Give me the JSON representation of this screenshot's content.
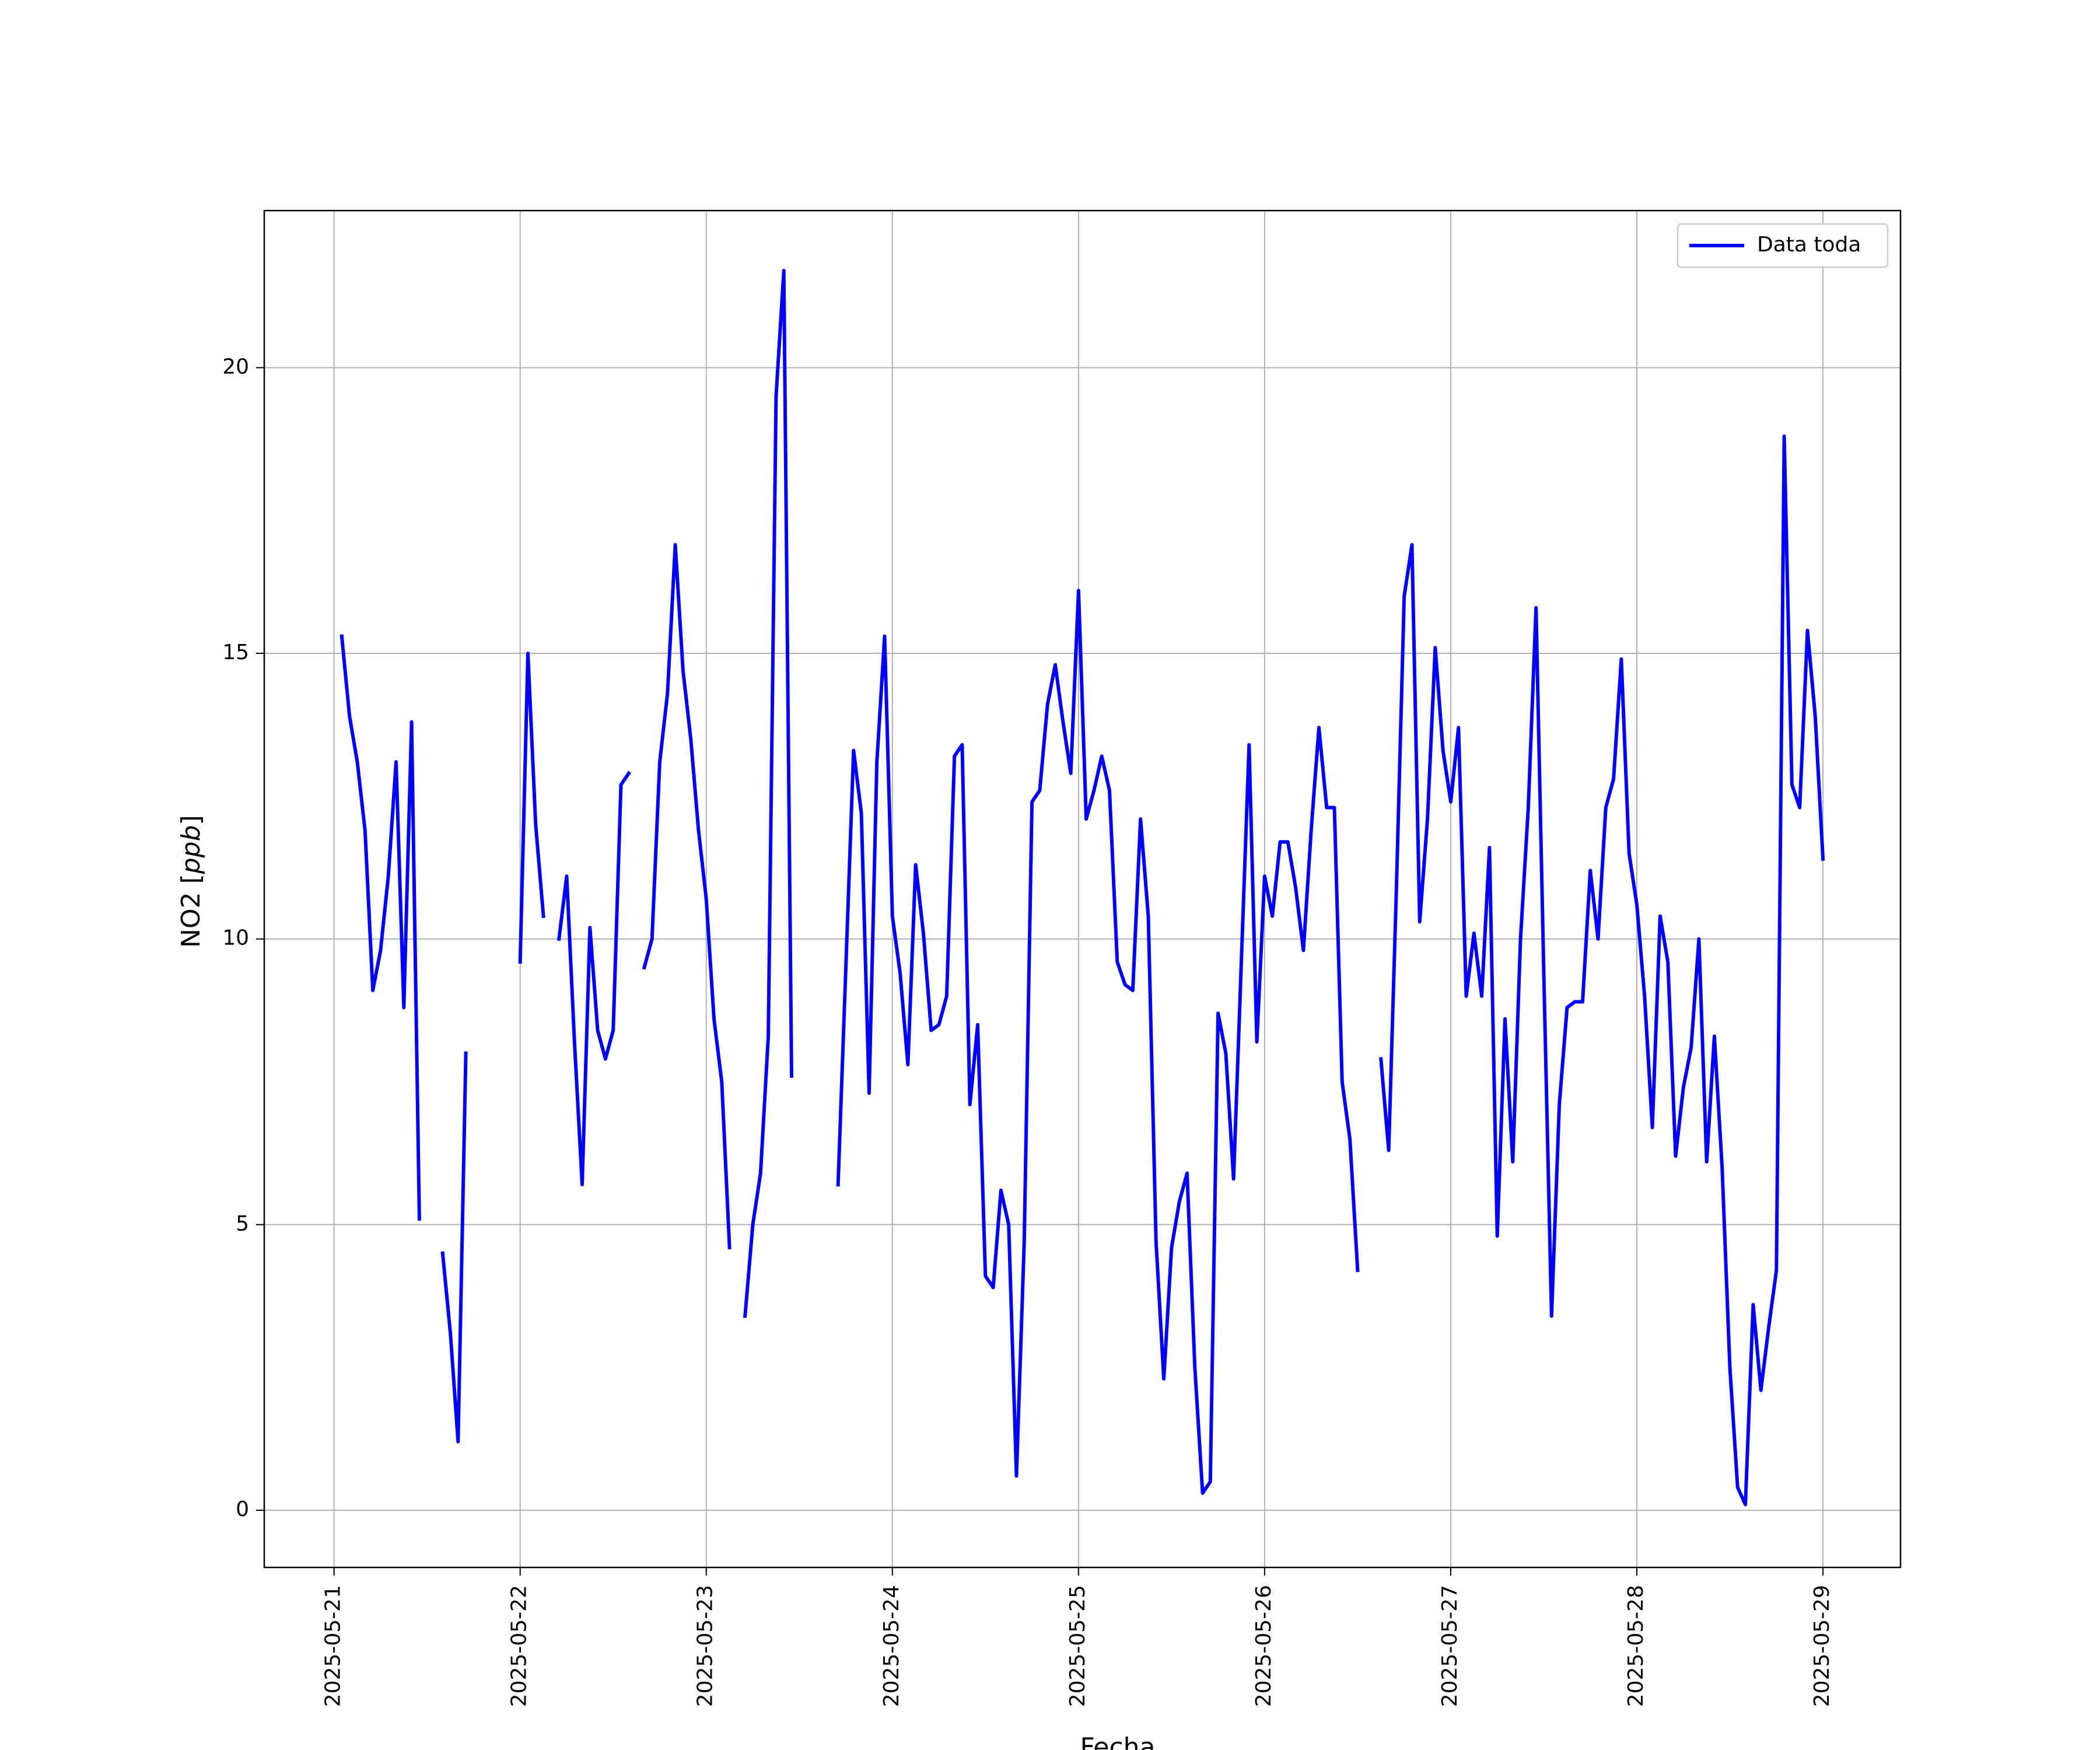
{
  "chart_data": {
    "type": "line",
    "xlabel": "Fecha",
    "ylabel_main": "NO2 [",
    "ylabel_unit": "ppb",
    "ylabel_close": "]",
    "xlim": [
      "2025-05-20 15:00",
      "2025-05-29 10:00"
    ],
    "ylim": [
      -1,
      22.75
    ],
    "grid": true,
    "legend_position": "top-right",
    "x_ticks": [
      "2025-05-21",
      "2025-05-22",
      "2025-05-23",
      "2025-05-24",
      "2025-05-25",
      "2025-05-26",
      "2025-05-27",
      "2025-05-28",
      "2025-05-29"
    ],
    "y_ticks": [
      0,
      5,
      10,
      15,
      20
    ],
    "y_tick_labels": [
      "0",
      "5",
      "10",
      "15",
      "20"
    ],
    "series": [
      {
        "name": "Data toda",
        "color": "#0000ff",
        "segments": [
          [
            [
              "2025-05-21 01:00",
              15.3
            ],
            [
              "2025-05-21 02:00",
              13.9
            ],
            [
              "2025-05-21 03:00",
              13.1
            ],
            [
              "2025-05-21 04:00",
              11.9
            ],
            [
              "2025-05-21 05:00",
              9.1
            ],
            [
              "2025-05-21 06:00",
              9.8
            ],
            [
              "2025-05-21 07:00",
              11.1
            ],
            [
              "2025-05-21 08:00",
              13.1
            ],
            [
              "2025-05-21 09:00",
              8.8
            ],
            [
              "2025-05-21 10:00",
              13.8
            ],
            [
              "2025-05-21 11:00",
              5.1
            ]
          ],
          [
            [
              "2025-05-21 14:00",
              4.5
            ],
            [
              "2025-05-21 15:00",
              3.1
            ],
            [
              "2025-05-21 16:00",
              1.2
            ],
            [
              "2025-05-21 17:00",
              8.0
            ]
          ],
          [
            [
              "2025-05-22 00:00",
              9.6
            ],
            [
              "2025-05-22 01:00",
              15.0
            ],
            [
              "2025-05-22 02:00",
              12.0
            ],
            [
              "2025-05-22 03:00",
              10.4
            ]
          ],
          [
            [
              "2025-05-22 05:00",
              10.0
            ],
            [
              "2025-05-22 06:00",
              11.1
            ],
            [
              "2025-05-22 07:00",
              8.2
            ],
            [
              "2025-05-22 08:00",
              5.7
            ],
            [
              "2025-05-22 09:00",
              10.2
            ],
            [
              "2025-05-22 10:00",
              8.4
            ],
            [
              "2025-05-22 11:00",
              7.9
            ],
            [
              "2025-05-22 12:00",
              8.4
            ],
            [
              "2025-05-22 13:00",
              12.7
            ],
            [
              "2025-05-22 14:00",
              12.9
            ]
          ],
          [
            [
              "2025-05-22 16:00",
              9.5
            ],
            [
              "2025-05-22 17:00",
              10.0
            ],
            [
              "2025-05-22 18:00",
              13.1
            ],
            [
              "2025-05-22 19:00",
              14.3
            ],
            [
              "2025-05-22 20:00",
              16.9
            ],
            [
              "2025-05-22 21:00",
              14.7
            ],
            [
              "2025-05-22 22:00",
              13.5
            ],
            [
              "2025-05-22 23:00",
              11.9
            ],
            [
              "2025-05-23 00:00",
              10.7
            ],
            [
              "2025-05-23 01:00",
              8.6
            ],
            [
              "2025-05-23 02:00",
              7.5
            ],
            [
              "2025-05-23 03:00",
              4.6
            ]
          ],
          [
            [
              "2025-05-23 05:00",
              3.4
            ],
            [
              "2025-05-23 06:00",
              5.0
            ],
            [
              "2025-05-23 07:00",
              5.9
            ],
            [
              "2025-05-23 08:00",
              8.3
            ],
            [
              "2025-05-23 09:00",
              19.5
            ],
            [
              "2025-05-23 10:00",
              21.7
            ],
            [
              "2025-05-23 11:00",
              7.6
            ]
          ],
          [
            [
              "2025-05-23 17:00",
              5.7
            ],
            [
              "2025-05-23 18:00",
              9.5
            ],
            [
              "2025-05-23 19:00",
              13.3
            ],
            [
              "2025-05-23 20:00",
              12.2
            ],
            [
              "2025-05-23 21:00",
              7.3
            ],
            [
              "2025-05-23 22:00",
              13.1
            ],
            [
              "2025-05-23 23:00",
              15.3
            ],
            [
              "2025-05-24 00:00",
              10.4
            ],
            [
              "2025-05-24 01:00",
              9.4
            ],
            [
              "2025-05-24 02:00",
              7.8
            ],
            [
              "2025-05-24 03:00",
              11.3
            ],
            [
              "2025-05-24 04:00",
              10.1
            ],
            [
              "2025-05-24 05:00",
              8.4
            ],
            [
              "2025-05-24 06:00",
              8.5
            ],
            [
              "2025-05-24 07:00",
              9.0
            ],
            [
              "2025-05-24 08:00",
              13.2
            ],
            [
              "2025-05-24 09:00",
              13.4
            ],
            [
              "2025-05-24 10:00",
              7.1
            ],
            [
              "2025-05-24 11:00",
              8.5
            ],
            [
              "2025-05-24 12:00",
              4.1
            ],
            [
              "2025-05-24 13:00",
              3.9
            ],
            [
              "2025-05-24 14:00",
              5.6
            ],
            [
              "2025-05-24 15:00",
              5.0
            ],
            [
              "2025-05-24 16:00",
              0.6
            ],
            [
              "2025-05-24 17:00",
              4.7
            ],
            [
              "2025-05-24 18:00",
              12.4
            ],
            [
              "2025-05-24 19:00",
              12.6
            ],
            [
              "2025-05-24 20:00",
              14.1
            ],
            [
              "2025-05-24 21:00",
              14.8
            ],
            [
              "2025-05-24 22:00",
              13.8
            ],
            [
              "2025-05-24 23:00",
              12.9
            ],
            [
              "2025-05-25 00:00",
              16.1
            ],
            [
              "2025-05-25 01:00",
              12.1
            ],
            [
              "2025-05-25 02:00",
              12.6
            ],
            [
              "2025-05-25 03:00",
              13.2
            ],
            [
              "2025-05-25 04:00",
              12.6
            ],
            [
              "2025-05-25 05:00",
              9.6
            ],
            [
              "2025-05-25 06:00",
              9.2
            ],
            [
              "2025-05-25 07:00",
              9.1
            ],
            [
              "2025-05-25 08:00",
              12.1
            ],
            [
              "2025-05-25 09:00",
              10.4
            ],
            [
              "2025-05-25 10:00",
              4.7
            ],
            [
              "2025-05-25 11:00",
              2.3
            ],
            [
              "2025-05-25 12:00",
              4.6
            ],
            [
              "2025-05-25 13:00",
              5.4
            ],
            [
              "2025-05-25 14:00",
              5.9
            ],
            [
              "2025-05-25 15:00",
              2.5
            ],
            [
              "2025-05-25 16:00",
              0.3
            ],
            [
              "2025-05-25 17:00",
              0.5
            ],
            [
              "2025-05-25 18:00",
              8.7
            ],
            [
              "2025-05-25 19:00",
              8.0
            ],
            [
              "2025-05-25 20:00",
              5.8
            ],
            [
              "2025-05-25 21:00",
              9.6
            ],
            [
              "2025-05-25 22:00",
              13.4
            ],
            [
              "2025-05-25 23:00",
              8.2
            ],
            [
              "2025-05-26 00:00",
              11.1
            ],
            [
              "2025-05-26 01:00",
              10.4
            ],
            [
              "2025-05-26 02:00",
              11.7
            ],
            [
              "2025-05-26 03:00",
              11.7
            ],
            [
              "2025-05-26 04:00",
              10.9
            ],
            [
              "2025-05-26 05:00",
              9.8
            ],
            [
              "2025-05-26 06:00",
              11.9
            ],
            [
              "2025-05-26 07:00",
              13.7
            ],
            [
              "2025-05-26 08:00",
              12.3
            ],
            [
              "2025-05-26 09:00",
              12.3
            ],
            [
              "2025-05-26 10:00",
              7.5
            ],
            [
              "2025-05-26 11:00",
              6.5
            ],
            [
              "2025-05-26 12:00",
              4.2
            ]
          ],
          [
            [
              "2025-05-26 15:00",
              7.9
            ],
            [
              "2025-05-26 16:00",
              6.3
            ],
            [
              "2025-05-26 17:00",
              10.9
            ],
            [
              "2025-05-26 18:00",
              16.0
            ],
            [
              "2025-05-26 19:00",
              16.9
            ],
            [
              "2025-05-26 20:00",
              10.3
            ],
            [
              "2025-05-26 21:00",
              12.1
            ],
            [
              "2025-05-26 22:00",
              15.1
            ],
            [
              "2025-05-26 23:00",
              13.3
            ],
            [
              "2025-05-27 00:00",
              12.4
            ],
            [
              "2025-05-27 01:00",
              13.7
            ],
            [
              "2025-05-27 02:00",
              9.0
            ],
            [
              "2025-05-27 03:00",
              10.1
            ],
            [
              "2025-05-27 04:00",
              9.0
            ],
            [
              "2025-05-27 05:00",
              11.6
            ],
            [
              "2025-05-27 06:00",
              4.8
            ],
            [
              "2025-05-27 07:00",
              8.6
            ],
            [
              "2025-05-27 08:00",
              6.1
            ],
            [
              "2025-05-27 09:00",
              10.0
            ],
            [
              "2025-05-27 10:00",
              12.3
            ],
            [
              "2025-05-27 11:00",
              15.8
            ],
            [
              "2025-05-27 12:00",
              9.4
            ],
            [
              "2025-05-27 13:00",
              3.4
            ],
            [
              "2025-05-27 14:00",
              7.1
            ],
            [
              "2025-05-27 15:00",
              8.8
            ],
            [
              "2025-05-27 16:00",
              8.9
            ],
            [
              "2025-05-27 17:00",
              8.9
            ],
            [
              "2025-05-27 18:00",
              11.2
            ],
            [
              "2025-05-27 19:00",
              10.0
            ],
            [
              "2025-05-27 20:00",
              12.3
            ],
            [
              "2025-05-27 21:00",
              12.8
            ],
            [
              "2025-05-27 22:00",
              14.9
            ],
            [
              "2025-05-27 23:00",
              11.5
            ],
            [
              "2025-05-28 00:00",
              10.6
            ],
            [
              "2025-05-28 01:00",
              9.0
            ],
            [
              "2025-05-28 02:00",
              6.7
            ],
            [
              "2025-05-28 03:00",
              10.4
            ],
            [
              "2025-05-28 04:00",
              9.6
            ],
            [
              "2025-05-28 05:00",
              6.2
            ],
            [
              "2025-05-28 06:00",
              7.4
            ],
            [
              "2025-05-28 07:00",
              8.1
            ],
            [
              "2025-05-28 08:00",
              10.0
            ],
            [
              "2025-05-28 09:00",
              6.1
            ],
            [
              "2025-05-28 10:00",
              8.3
            ],
            [
              "2025-05-28 11:00",
              6.0
            ],
            [
              "2025-05-28 12:00",
              2.5
            ],
            [
              "2025-05-28 13:00",
              0.4
            ],
            [
              "2025-05-28 14:00",
              0.1
            ],
            [
              "2025-05-28 15:00",
              3.6
            ],
            [
              "2025-05-28 16:00",
              2.1
            ],
            [
              "2025-05-28 17:00",
              3.2
            ],
            [
              "2025-05-28 18:00",
              4.2
            ],
            [
              "2025-05-28 19:00",
              18.8
            ],
            [
              "2025-05-28 20:00",
              12.7
            ],
            [
              "2025-05-28 21:00",
              12.3
            ],
            [
              "2025-05-28 22:00",
              15.4
            ],
            [
              "2025-05-28 23:00",
              13.9
            ],
            [
              "2025-05-29 00:00",
              11.4
            ]
          ]
        ]
      }
    ]
  }
}
